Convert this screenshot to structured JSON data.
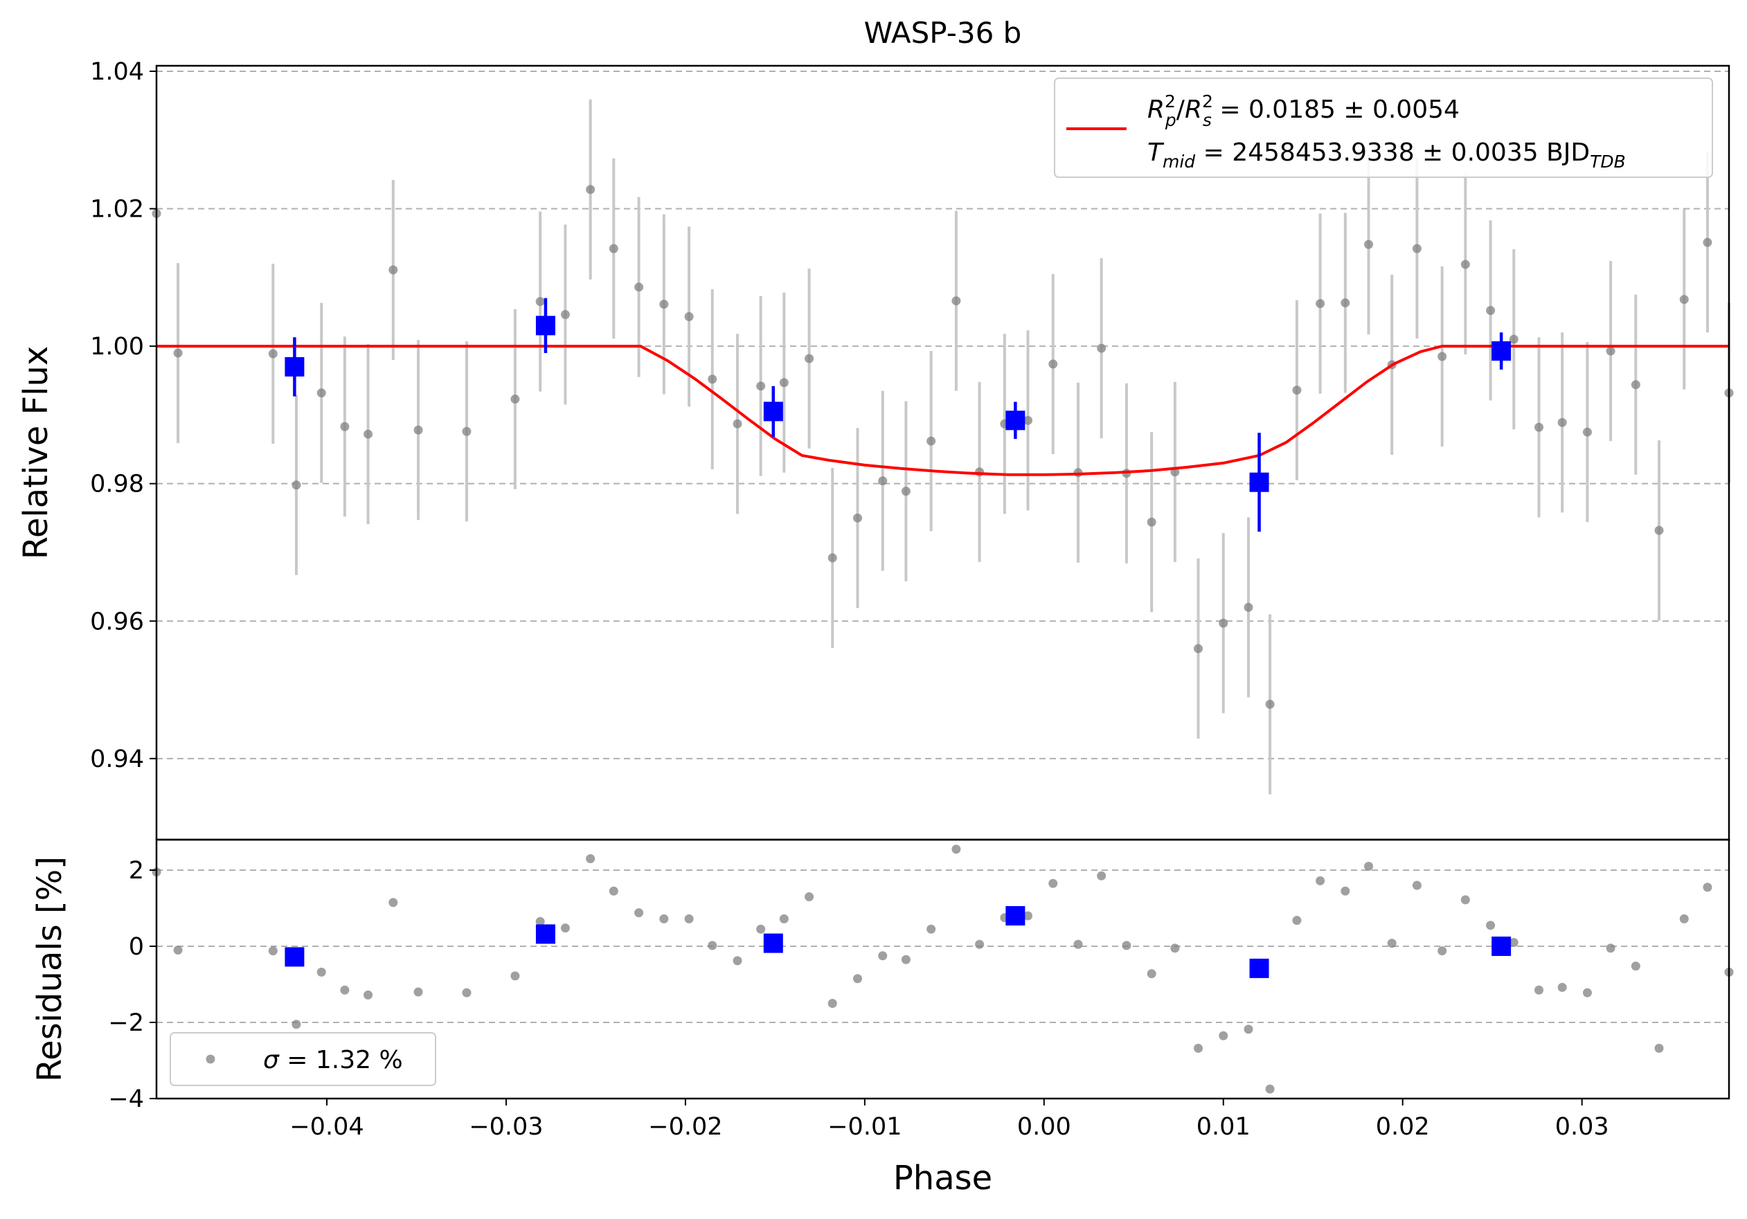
{
  "chart_data": [
    {
      "type": "scatter",
      "panel": "light-curve",
      "title": "WASP-36 b",
      "xlabel": "",
      "ylabel": "Relative Flux",
      "xlim": [
        -0.0495,
        0.0382
      ],
      "ylim": [
        0.9282,
        1.0408
      ],
      "yticks": [
        0.94,
        0.96,
        0.98,
        1.0,
        1.02,
        1.04
      ],
      "ytick_labels": [
        "0.94",
        "0.96",
        "0.98",
        "1.00",
        "1.02",
        "1.04"
      ],
      "grid": "horizontal dashed",
      "legend_position": "top-right",
      "legend": {
        "line1": {
          "a": "R",
          "a_sup": "2",
          "a_sub": "p",
          "b": "R",
          "b_sup": "2",
          "b_sub": "s",
          "value": " = 0.0185 ± 0.0054"
        },
        "line2": {
          "sym": "T",
          "sym_sub": "mid",
          "value": " = 2458453.9338 ± 0.0035 BJD",
          "unit_sub": "TDB"
        }
      },
      "colors": {
        "data": "#808080",
        "errorbar": "#c8c8c8",
        "binned": "#0000ff",
        "model": "#ff0000",
        "grid": "#b0b0b0"
      },
      "series": [
        {
          "role": "unbinned",
          "points": [
            {
              "x": -0.0495,
              "y": 1.0193,
              "err": 0.0
            },
            {
              "x": -0.0483,
              "y": 0.999,
              "err": 0.0131
            },
            {
              "x": -0.043,
              "y": 0.9989,
              "err": 0.0131
            },
            {
              "x": -0.0417,
              "y": 0.9798,
              "err": 0.0131
            },
            {
              "x": -0.0403,
              "y": 0.9932,
              "err": 0.0131
            },
            {
              "x": -0.039,
              "y": 0.9883,
              "err": 0.0131
            },
            {
              "x": -0.0377,
              "y": 0.9872,
              "err": 0.0131
            },
            {
              "x": -0.0363,
              "y": 1.0111,
              "err": 0.0131
            },
            {
              "x": -0.0349,
              "y": 0.9878,
              "err": 0.0131
            },
            {
              "x": -0.0322,
              "y": 0.9876,
              "err": 0.0131
            },
            {
              "x": -0.0295,
              "y": 0.9923,
              "err": 0.0131
            },
            {
              "x": -0.0281,
              "y": 1.0065,
              "err": 0.0131
            },
            {
              "x": -0.0267,
              "y": 1.0046,
              "err": 0.0131
            },
            {
              "x": -0.0253,
              "y": 1.0228,
              "err": 0.0131
            },
            {
              "x": -0.024,
              "y": 1.0142,
              "err": 0.0131
            },
            {
              "x": -0.0226,
              "y": 1.0086,
              "err": 0.0131
            },
            {
              "x": -0.0212,
              "y": 1.0061,
              "err": 0.0131
            },
            {
              "x": -0.0198,
              "y": 1.0043,
              "err": 0.0131
            },
            {
              "x": -0.0185,
              "y": 0.9952,
              "err": 0.0131
            },
            {
              "x": -0.0171,
              "y": 0.9887,
              "err": 0.0131
            },
            {
              "x": -0.0158,
              "y": 0.9942,
              "err": 0.0131
            },
            {
              "x": -0.0145,
              "y": 0.9947,
              "err": 0.0131
            },
            {
              "x": -0.0131,
              "y": 0.9982,
              "err": 0.0131
            },
            {
              "x": -0.0118,
              "y": 0.9692,
              "err": 0.0131
            },
            {
              "x": -0.0104,
              "y": 0.975,
              "err": 0.0131
            },
            {
              "x": -0.009,
              "y": 0.9804,
              "err": 0.0131
            },
            {
              "x": -0.0077,
              "y": 0.9789,
              "err": 0.0131
            },
            {
              "x": -0.0063,
              "y": 0.9862,
              "err": 0.0131
            },
            {
              "x": -0.0049,
              "y": 1.0066,
              "err": 0.0131
            },
            {
              "x": -0.0036,
              "y": 0.9817,
              "err": 0.0131
            },
            {
              "x": -0.0022,
              "y": 0.9887,
              "err": 0.0131
            },
            {
              "x": -0.0009,
              "y": 0.9892,
              "err": 0.0131
            },
            {
              "x": 0.0005,
              "y": 0.9974,
              "err": 0.0131
            },
            {
              "x": 0.0019,
              "y": 0.9816,
              "err": 0.0131
            },
            {
              "x": 0.0032,
              "y": 0.9997,
              "err": 0.0131
            },
            {
              "x": 0.0046,
              "y": 0.9815,
              "err": 0.0131
            },
            {
              "x": 0.006,
              "y": 0.9744,
              "err": 0.0131
            },
            {
              "x": 0.0073,
              "y": 0.9817,
              "err": 0.0131
            },
            {
              "x": 0.0086,
              "y": 0.956,
              "err": 0.0131
            },
            {
              "x": 0.01,
              "y": 0.9597,
              "err": 0.0131
            },
            {
              "x": 0.0114,
              "y": 0.962,
              "err": 0.0131
            },
            {
              "x": 0.0126,
              "y": 0.9479,
              "err": 0.0131
            },
            {
              "x": 0.0141,
              "y": 0.9936,
              "err": 0.0131
            },
            {
              "x": 0.0154,
              "y": 1.0062,
              "err": 0.0131
            },
            {
              "x": 0.0168,
              "y": 1.0063,
              "err": 0.0131
            },
            {
              "x": 0.0181,
              "y": 1.0148,
              "err": 0.0131
            },
            {
              "x": 0.0194,
              "y": 0.9973,
              "err": 0.0131
            },
            {
              "x": 0.0208,
              "y": 1.0142,
              "err": 0.0131
            },
            {
              "x": 0.0222,
              "y": 0.9985,
              "err": 0.0131
            },
            {
              "x": 0.0235,
              "y": 1.0119,
              "err": 0.0131
            },
            {
              "x": 0.0249,
              "y": 1.0052,
              "err": 0.0131
            },
            {
              "x": 0.0262,
              "y": 1.001,
              "err": 0.0131
            },
            {
              "x": 0.0276,
              "y": 0.9882,
              "err": 0.0131
            },
            {
              "x": 0.0289,
              "y": 0.9889,
              "err": 0.0131
            },
            {
              "x": 0.0303,
              "y": 0.9875,
              "err": 0.0131
            },
            {
              "x": 0.0316,
              "y": 0.9993,
              "err": 0.0131
            },
            {
              "x": 0.033,
              "y": 0.9944,
              "err": 0.0131
            },
            {
              "x": 0.0343,
              "y": 0.9732,
              "err": 0.0131
            },
            {
              "x": 0.0357,
              "y": 1.0068,
              "err": 0.0131
            },
            {
              "x": 0.037,
              "y": 1.0151,
              "err": 0.0131
            },
            {
              "x": 0.0382,
              "y": 0.9932,
              "err": 0.0131
            }
          ]
        },
        {
          "role": "binned",
          "points": [
            {
              "x": -0.0418,
              "y": 0.997,
              "err": 0.0043
            },
            {
              "x": -0.0278,
              "y": 1.003,
              "err": 0.004
            },
            {
              "x": -0.0151,
              "y": 0.9905,
              "err": 0.0037
            },
            {
              "x": -0.0016,
              "y": 0.9892,
              "err": 0.0027
            },
            {
              "x": 0.012,
              "y": 0.9802,
              "err": 0.0072
            },
            {
              "x": 0.0255,
              "y": 0.9993,
              "err": 0.0027
            }
          ]
        },
        {
          "role": "model",
          "points": [
            {
              "x": -0.0495,
              "y": 1.0
            },
            {
              "x": -0.0225,
              "y": 1.0
            },
            {
              "x": -0.021,
              "y": 0.9979
            },
            {
              "x": -0.0195,
              "y": 0.9953
            },
            {
              "x": -0.018,
              "y": 0.9924
            },
            {
              "x": -0.0165,
              "y": 0.9894
            },
            {
              "x": -0.015,
              "y": 0.9865
            },
            {
              "x": -0.0135,
              "y": 0.9841
            },
            {
              "x": -0.012,
              "y": 0.9834
            },
            {
              "x": -0.01,
              "y": 0.9827
            },
            {
              "x": -0.008,
              "y": 0.9822
            },
            {
              "x": -0.006,
              "y": 0.9818
            },
            {
              "x": -0.004,
              "y": 0.9815
            },
            {
              "x": -0.002,
              "y": 0.9813
            },
            {
              "x": 0.0,
              "y": 0.9813
            },
            {
              "x": 0.002,
              "y": 0.9814
            },
            {
              "x": 0.004,
              "y": 0.9816
            },
            {
              "x": 0.006,
              "y": 0.9819
            },
            {
              "x": 0.008,
              "y": 0.9824
            },
            {
              "x": 0.01,
              "y": 0.983
            },
            {
              "x": 0.012,
              "y": 0.9841
            },
            {
              "x": 0.0135,
              "y": 0.986
            },
            {
              "x": 0.015,
              "y": 0.9888
            },
            {
              "x": 0.0165,
              "y": 0.9918
            },
            {
              "x": 0.018,
              "y": 0.9948
            },
            {
              "x": 0.0195,
              "y": 0.9974
            },
            {
              "x": 0.021,
              "y": 0.9992
            },
            {
              "x": 0.0222,
              "y": 1.0
            },
            {
              "x": 0.0382,
              "y": 1.0
            }
          ]
        }
      ]
    },
    {
      "type": "scatter",
      "panel": "residuals",
      "xlabel": "Phase",
      "ylabel": "Residuals [%]",
      "xlim": [
        -0.0495,
        0.0382
      ],
      "ylim": [
        -4.0,
        2.8
      ],
      "xticks": [
        -0.04,
        -0.03,
        -0.02,
        -0.01,
        0.0,
        0.01,
        0.02,
        0.03
      ],
      "xtick_labels": [
        "−0.04",
        "−0.03",
        "−0.02",
        "−0.01",
        "0.00",
        "0.01",
        "0.02",
        "0.03"
      ],
      "yticks": [
        -4,
        -2,
        0,
        2
      ],
      "ytick_labels": [
        "−4",
        "−2",
        "0",
        "2"
      ],
      "grid": "horizontal dashed",
      "legend_position": "bottom-left",
      "legend": {
        "sym": "σ",
        "value": " = 1.32 %"
      },
      "series": [
        {
          "role": "unbinned",
          "points": [
            {
              "x": -0.0495,
              "y": 1.95
            },
            {
              "x": -0.0483,
              "y": -0.1
            },
            {
              "x": -0.043,
              "y": -0.12
            },
            {
              "x": -0.0417,
              "y": -2.05
            },
            {
              "x": -0.0403,
              "y": -0.68
            },
            {
              "x": -0.039,
              "y": -1.15
            },
            {
              "x": -0.0377,
              "y": -1.28
            },
            {
              "x": -0.0363,
              "y": 1.15
            },
            {
              "x": -0.0349,
              "y": -1.2
            },
            {
              "x": -0.0322,
              "y": -1.22
            },
            {
              "x": -0.0295,
              "y": -0.78
            },
            {
              "x": -0.0281,
              "y": 0.65
            },
            {
              "x": -0.0267,
              "y": 0.48
            },
            {
              "x": -0.0253,
              "y": 2.3
            },
            {
              "x": -0.024,
              "y": 1.45
            },
            {
              "x": -0.0226,
              "y": 0.88
            },
            {
              "x": -0.0212,
              "y": 0.72
            },
            {
              "x": -0.0198,
              "y": 0.72
            },
            {
              "x": -0.0185,
              "y": 0.02
            },
            {
              "x": -0.0171,
              "y": -0.38
            },
            {
              "x": -0.0158,
              "y": 0.45
            },
            {
              "x": -0.0145,
              "y": 0.72
            },
            {
              "x": -0.0131,
              "y": 1.3
            },
            {
              "x": -0.0118,
              "y": -1.5
            },
            {
              "x": -0.0104,
              "y": -0.85
            },
            {
              "x": -0.009,
              "y": -0.25
            },
            {
              "x": -0.0077,
              "y": -0.35
            },
            {
              "x": -0.0063,
              "y": 0.45
            },
            {
              "x": -0.0049,
              "y": 2.55
            },
            {
              "x": -0.0036,
              "y": 0.05
            },
            {
              "x": -0.0022,
              "y": 0.75
            },
            {
              "x": -0.0009,
              "y": 0.8
            },
            {
              "x": 0.0005,
              "y": 1.65
            },
            {
              "x": 0.0019,
              "y": 0.05
            },
            {
              "x": 0.0032,
              "y": 1.85
            },
            {
              "x": 0.0046,
              "y": 0.02
            },
            {
              "x": 0.006,
              "y": -0.72
            },
            {
              "x": 0.0073,
              "y": -0.05
            },
            {
              "x": 0.0086,
              "y": -2.68
            },
            {
              "x": 0.01,
              "y": -2.35
            },
            {
              "x": 0.0114,
              "y": -2.18
            },
            {
              "x": 0.0126,
              "y": -3.75
            },
            {
              "x": 0.0141,
              "y": 0.68
            },
            {
              "x": 0.0154,
              "y": 1.72
            },
            {
              "x": 0.0168,
              "y": 1.45
            },
            {
              "x": 0.0181,
              "y": 2.1
            },
            {
              "x": 0.0194,
              "y": 0.08
            },
            {
              "x": 0.0208,
              "y": 1.6
            },
            {
              "x": 0.0222,
              "y": -0.12
            },
            {
              "x": 0.0235,
              "y": 1.22
            },
            {
              "x": 0.0249,
              "y": 0.55
            },
            {
              "x": 0.0262,
              "y": 0.1
            },
            {
              "x": 0.0276,
              "y": -1.15
            },
            {
              "x": 0.0289,
              "y": -1.08
            },
            {
              "x": 0.0303,
              "y": -1.22
            },
            {
              "x": 0.0316,
              "y": -0.05
            },
            {
              "x": 0.033,
              "y": -0.52
            },
            {
              "x": 0.0343,
              "y": -2.68
            },
            {
              "x": 0.0357,
              "y": 0.72
            },
            {
              "x": 0.037,
              "y": 1.55
            },
            {
              "x": 0.0382,
              "y": -0.68
            }
          ]
        },
        {
          "role": "binned",
          "points": [
            {
              "x": -0.0418,
              "y": -0.28
            },
            {
              "x": -0.0278,
              "y": 0.32
            },
            {
              "x": -0.0151,
              "y": 0.08
            },
            {
              "x": -0.0016,
              "y": 0.8
            },
            {
              "x": 0.012,
              "y": -0.58
            },
            {
              "x": 0.0255,
              "y": 0.0
            }
          ]
        }
      ]
    }
  ]
}
